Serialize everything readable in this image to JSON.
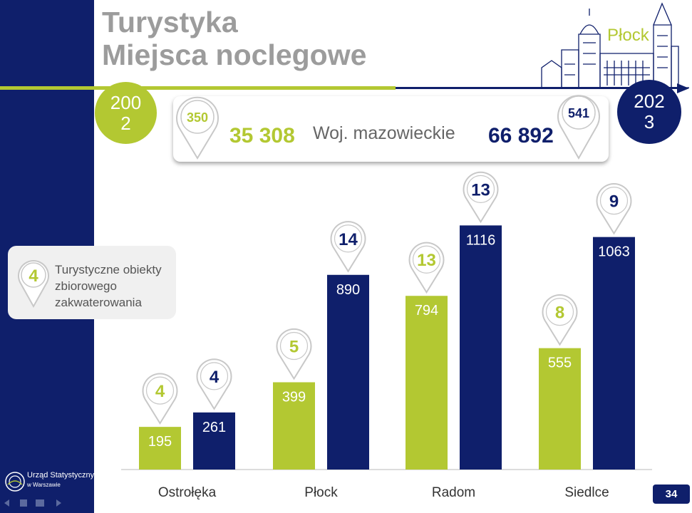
{
  "title_line1": "Turystyka",
  "title_line2": "Miejsca noclegowe",
  "city": "Płock",
  "years": {
    "start": "2002",
    "end": "2023"
  },
  "summary": {
    "region": "Woj. mazowieckie",
    "value_2002": "35 308",
    "value_2023": "66 892",
    "objects_2002": "350",
    "objects_2023": "541"
  },
  "legend": {
    "pin_value": "4",
    "text": "Turystyczne obiekty zbiorowego zakwaterowania"
  },
  "logo": {
    "line1": "Urząd Statystyczny",
    "line2": "w Warszawie"
  },
  "page_number": "34",
  "colors": {
    "navy": "#0f1f6b",
    "lime": "#b3c832",
    "gray_title": "#9c9c9c"
  },
  "chart_data": {
    "type": "bar",
    "categories": [
      "Ostrołęka",
      "Płock",
      "Radom",
      "Siedlce"
    ],
    "series": [
      {
        "name": "2002",
        "values": [
          195,
          399,
          794,
          555
        ],
        "objects": [
          4,
          5,
          13,
          8
        ],
        "color": "#b3c832"
      },
      {
        "name": "2023",
        "values": [
          261,
          890,
          1116,
          1063
        ],
        "objects": [
          4,
          14,
          13,
          9
        ],
        "color": "#0f1f6b"
      }
    ],
    "ylim": [
      0,
      1200
    ],
    "title": "",
    "xlabel": "",
    "ylabel": "",
    "grid": false
  }
}
